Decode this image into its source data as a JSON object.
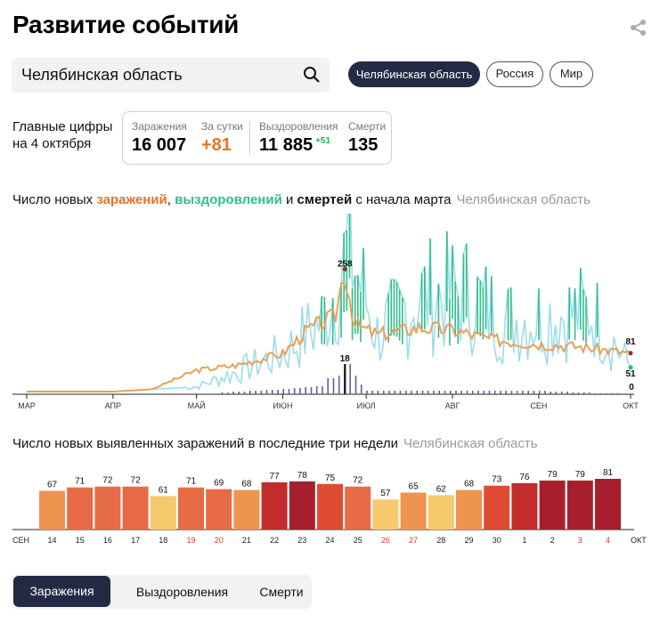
{
  "header": {
    "title": "Развитие событий"
  },
  "search": {
    "value": "Челябинская область"
  },
  "regions": [
    {
      "label": "Челябинская область",
      "active": true
    },
    {
      "label": "Россия",
      "active": false
    },
    {
      "label": "Мир",
      "active": false
    }
  ],
  "summary": {
    "label": "Главные цифры на 4 октября",
    "infections_label": "Заражения",
    "infections": "16 007",
    "daily_label": "За сутки",
    "daily": "+81",
    "recovered_label": "Выздоровления",
    "recovered": "11 885",
    "recovered_delta": "+51",
    "deaths_label": "Смерти",
    "deaths": "135"
  },
  "trend": {
    "title_pre": "Число новых ",
    "title_inf": "заражений",
    "title_sep1": ", ",
    "title_rec": "выздоровлений",
    "title_sep2": " и ",
    "title_dth": "смертей",
    "title_post": " с начала марта",
    "region": "Челябинская область"
  },
  "bars": {
    "title": "Число новых выявленных заражений в последние три недели",
    "region": "Челябинская область"
  },
  "tabs": {
    "infections": "Заражения",
    "recovered": "Выздоровления",
    "deaths": "Смерти"
  },
  "colors": {
    "infections": "#e8a15a",
    "recovered": "#9edcec",
    "recovered_peak": "#2ebe8a",
    "deaths": "#5d6298",
    "accent": "#242a44",
    "weekend": "#e03a1e"
  },
  "chart_data": [
    {
      "type": "line",
      "title": "Число новых заражений, выздоровлений и смертей с начала марта",
      "x_ticks": [
        "МАР",
        "АПР",
        "МАЙ",
        "ИЮН",
        "ИЮЛ",
        "АВГ",
        "СЕН",
        "ОКТ"
      ],
      "annotations": [
        {
          "label": "258",
          "series": "Заражения",
          "note": "peak"
        },
        {
          "label": "18",
          "series": "Смерти",
          "note": "peak"
        },
        {
          "label": "81",
          "series": "Заражения",
          "note": "last"
        },
        {
          "label": "51",
          "series": "Выздоровления",
          "note": "last"
        },
        {
          "label": "0",
          "series": "Смерти",
          "note": "last"
        }
      ],
      "series": [
        {
          "name": "Заражения",
          "color": "#e8a15a",
          "x": [
            "2020-03-01",
            "2020-03-20",
            "2020-04-01",
            "2020-04-15",
            "2020-04-25",
            "2020-05-01",
            "2020-05-15",
            "2020-06-01",
            "2020-06-10",
            "2020-06-20",
            "2020-06-23",
            "2020-06-27",
            "2020-07-05",
            "2020-07-20",
            "2020-08-01",
            "2020-08-15",
            "2020-09-01",
            "2020-09-15",
            "2020-10-04"
          ],
          "values": [
            0,
            0,
            0,
            5,
            30,
            45,
            55,
            80,
            130,
            160,
            258,
            140,
            120,
            135,
            130,
            110,
            100,
            95,
            81
          ]
        },
        {
          "name": "Выздоровления",
          "color": "#9edcec",
          "x": [
            "2020-03-01",
            "2020-04-01",
            "2020-05-01",
            "2020-05-15",
            "2020-06-01",
            "2020-06-15",
            "2020-06-25",
            "2020-07-05",
            "2020-07-20",
            "2020-08-05",
            "2020-08-20",
            "2020-09-05",
            "2020-09-20",
            "2020-10-04"
          ],
          "values": [
            0,
            0,
            10,
            40,
            80,
            150,
            300,
            120,
            200,
            210,
            150,
            160,
            170,
            51
          ]
        },
        {
          "name": "Смерти",
          "color": "#5d6298",
          "x": [
            "2020-05-10",
            "2020-06-01",
            "2020-06-15",
            "2020-06-23",
            "2020-07-01",
            "2020-08-01",
            "2020-09-01",
            "2020-10-04"
          ],
          "values": [
            1,
            3,
            5,
            18,
            2,
            2,
            2,
            0
          ]
        }
      ]
    },
    {
      "type": "bar",
      "title": "Число новых выявленных заражений в последние три недели",
      "categories": [
        "14",
        "15",
        "16",
        "17",
        "18",
        "19",
        "20",
        "21",
        "22",
        "23",
        "24",
        "25",
        "26",
        "27",
        "28",
        "29",
        "30",
        "1",
        "2",
        "3",
        "4"
      ],
      "values": [
        67,
        71,
        72,
        72,
        61,
        71,
        69,
        68,
        77,
        78,
        75,
        72,
        57,
        65,
        62,
        68,
        73,
        76,
        79,
        79,
        81
      ],
      "weekend": [
        "19",
        "20",
        "26",
        "27",
        "3",
        "4"
      ],
      "x_edge_labels": [
        "СЕН",
        "ОКТ"
      ],
      "ylim": [
        0,
        81
      ]
    }
  ]
}
